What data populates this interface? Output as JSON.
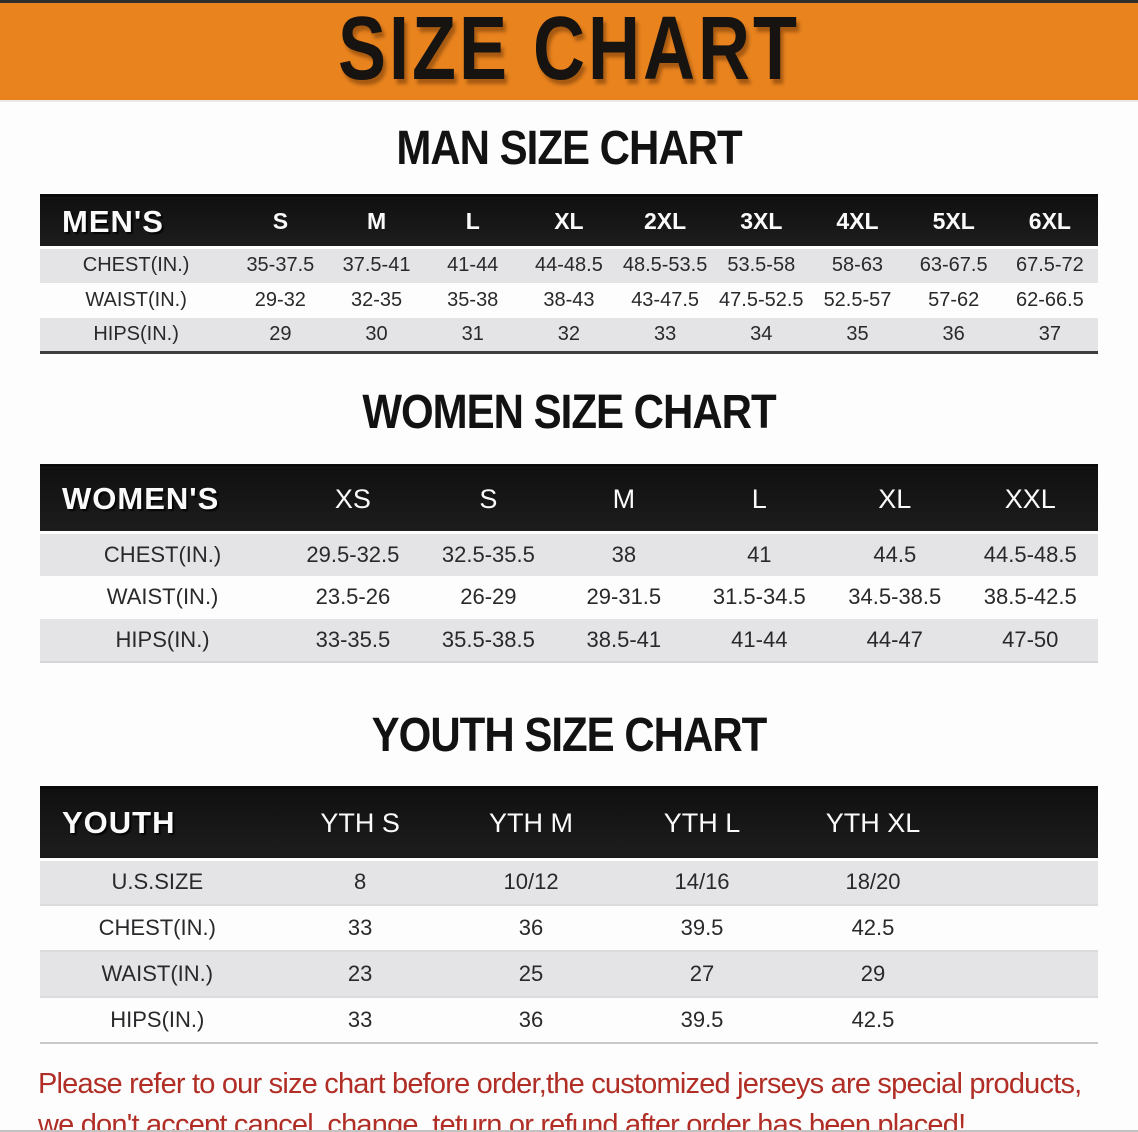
{
  "banner": {
    "title": "SIZE CHART"
  },
  "colors": {
    "banner_bg": "#E8831E",
    "table_header_bg": "#161616",
    "row_gray": "#E4E4E6",
    "row_white": "#FDFDFE",
    "disclaimer_red": "#B02E26"
  },
  "men": {
    "heading": "MAN SIZE CHART",
    "corner_label": "MEN'S",
    "sizes": [
      "S",
      "M",
      "L",
      "XL",
      "2XL",
      "3XL",
      "4XL",
      "5XL",
      "6XL"
    ],
    "rows": [
      {
        "label": "CHEST(IN.)",
        "values": [
          "35-37.5",
          "37.5-41",
          "41-44",
          "44-48.5",
          "48.5-53.5",
          "53.5-58",
          "58-63",
          "63-67.5",
          "67.5-72"
        ]
      },
      {
        "label": "WAIST(IN.)",
        "values": [
          "29-32",
          "32-35",
          "35-38",
          "38-43",
          "43-47.5",
          "47.5-52.5",
          "52.5-57",
          "57-62",
          "62-66.5"
        ]
      },
      {
        "label": "HIPS(IN.)",
        "values": [
          "29",
          "30",
          "31",
          "32",
          "33",
          "34",
          "35",
          "36",
          "37"
        ]
      }
    ]
  },
  "women": {
    "heading": "WOMEN SIZE CHART",
    "corner_label": "WOMEN'S",
    "sizes": [
      "XS",
      "S",
      "M",
      "L",
      "XL",
      "XXL"
    ],
    "rows": [
      {
        "label": "CHEST(IN.)",
        "values": [
          "29.5-32.5",
          "32.5-35.5",
          "38",
          "41",
          "44.5",
          "44.5-48.5"
        ]
      },
      {
        "label": "WAIST(IN.)",
        "values": [
          "23.5-26",
          "26-29",
          "29-31.5",
          "31.5-34.5",
          "34.5-38.5",
          "38.5-42.5"
        ]
      },
      {
        "label": "HIPS(IN.)",
        "values": [
          "33-35.5",
          "35.5-38.5",
          "38.5-41",
          "41-44",
          "44-47",
          "47-50"
        ]
      }
    ]
  },
  "youth": {
    "heading": "YOUTH SIZE CHART",
    "corner_label": "YOUTH",
    "sizes": [
      "YTH S",
      "YTH M",
      "YTH L",
      "YTH XL"
    ],
    "rows": [
      {
        "label": "U.S.SIZE",
        "values": [
          "8",
          "10/12",
          "14/16",
          "18/20"
        ]
      },
      {
        "label": "CHEST(IN.)",
        "values": [
          "33",
          "36",
          "39.5",
          "42.5"
        ]
      },
      {
        "label": "WAIST(IN.)",
        "values": [
          "23",
          "25",
          "27",
          "29"
        ]
      },
      {
        "label": "HIPS(IN.)",
        "values": [
          "33",
          "36",
          "39.5",
          "42.5"
        ]
      }
    ]
  },
  "disclaimer": {
    "line1": "Please refer to our size chart before order,the customized jerseys are special products,",
    "line2": "we don't accept cancel, change, teturn or refund after order has been placed!"
  }
}
